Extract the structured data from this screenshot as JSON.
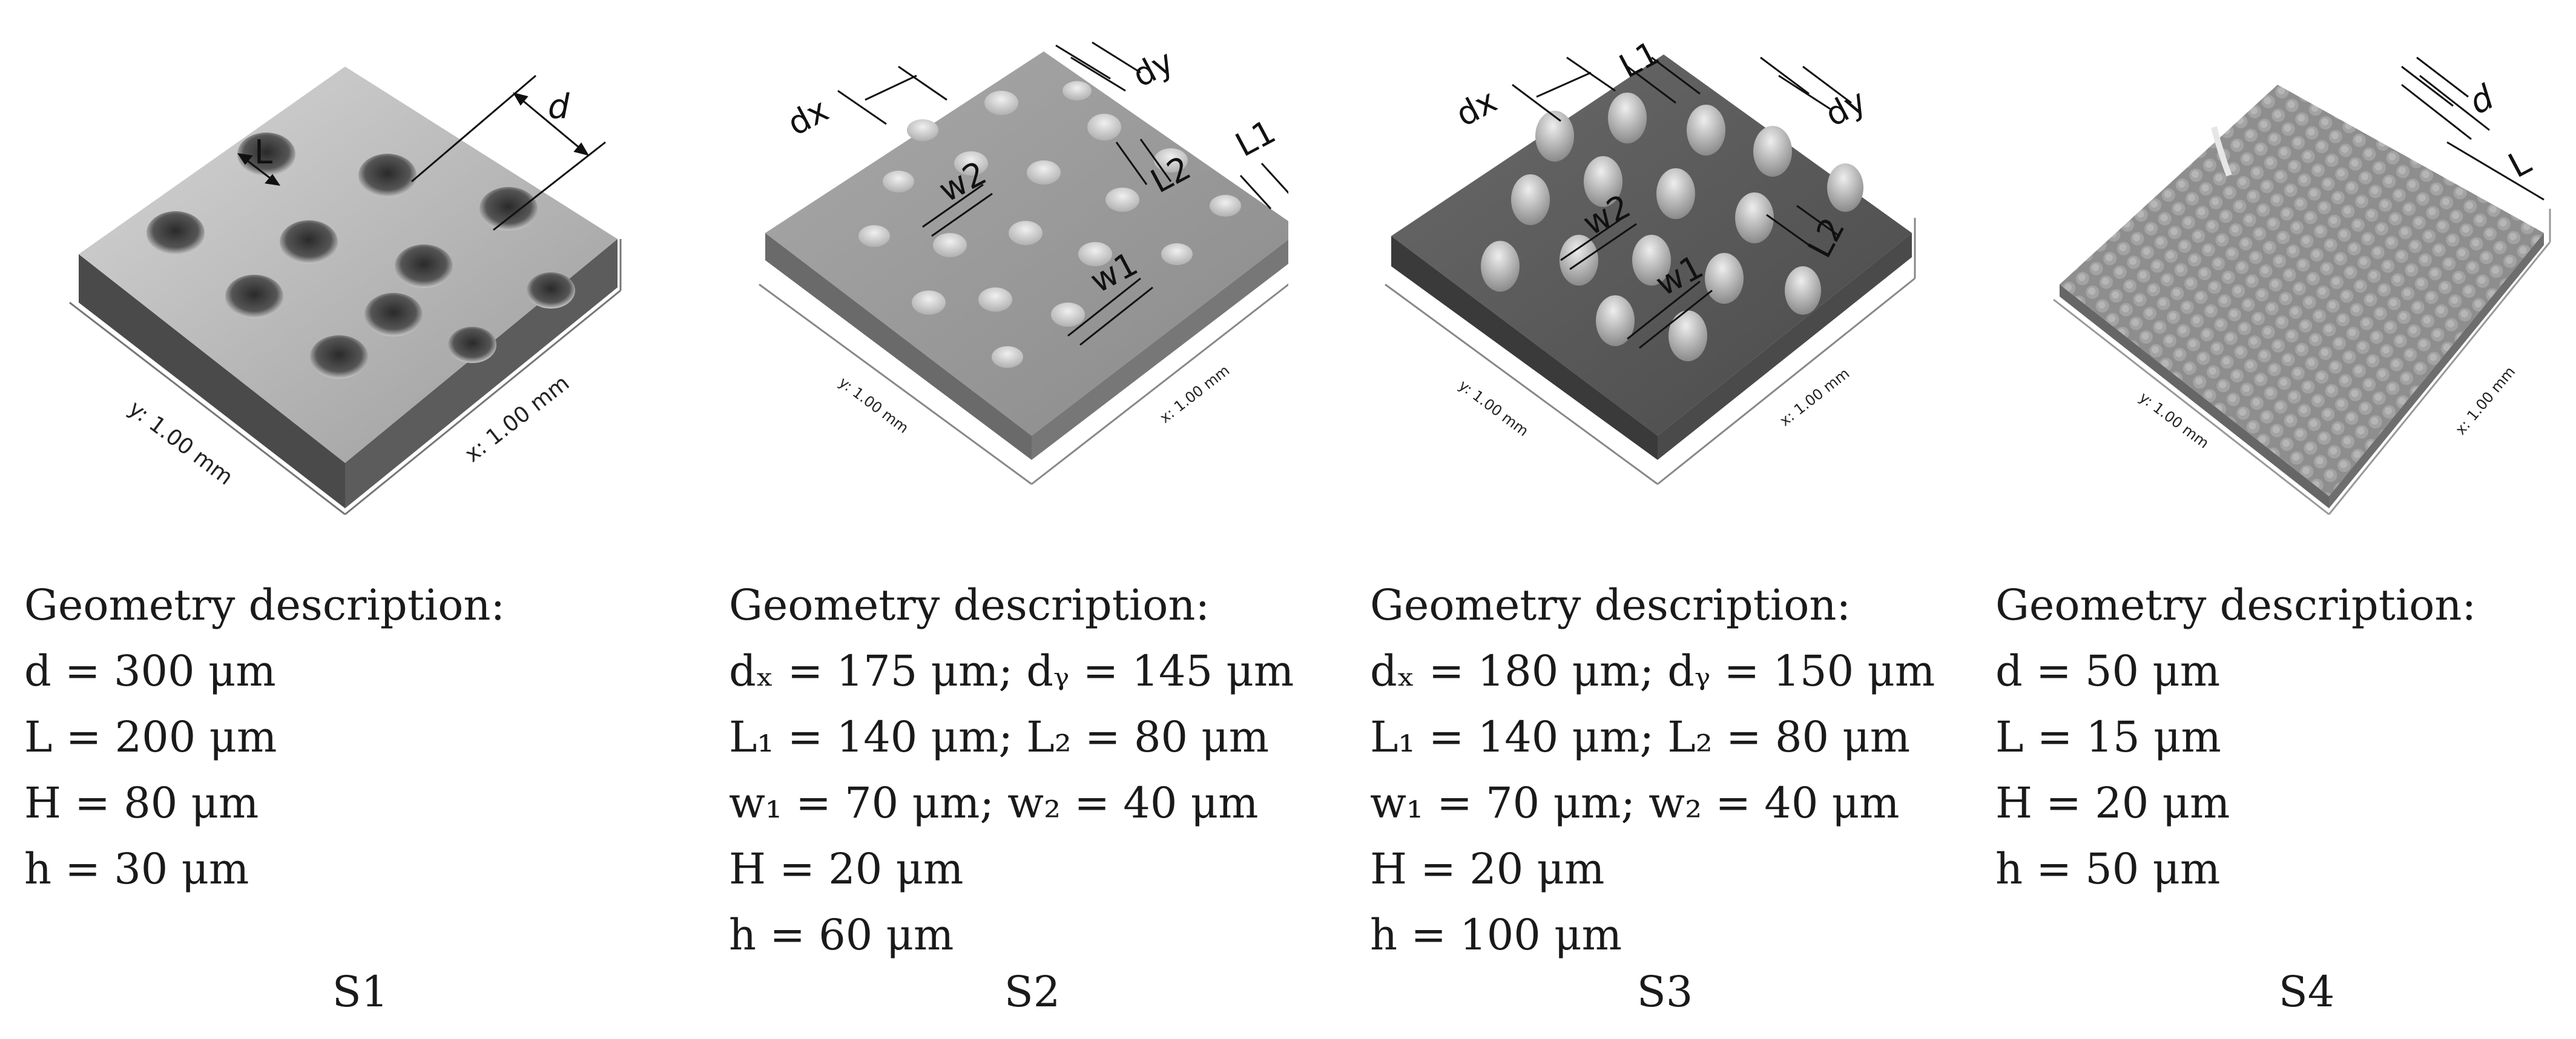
{
  "panels": [
    {
      "label": "S1",
      "x_axis": "x: 1.00 mm",
      "y_axis": "y: 1.00 mm",
      "dims": {
        "d": "d",
        "L": "L"
      },
      "desc": [
        "Geometry description:",
        "d = 300 μm",
        "L = 200 μm",
        "H = 80 μm",
        "h = 30 μm"
      ]
    },
    {
      "label": "S2",
      "x_axis": "x: 1.00 mm",
      "y_axis": "y: 1.00 mm",
      "dims": {
        "dx": "dx",
        "dy": "dy",
        "L1": "L1",
        "L2": "L2",
        "w1": "w1",
        "w2": "w2"
      },
      "desc": [
        "Geometry description:",
        "dₓ = 175 μm; dᵧ = 145 μm",
        "L₁ = 140 μm; L₂ = 80 μm",
        "w₁ = 70 μm; w₂ = 40 μm",
        "H = 20 μm",
        "h = 60 μm"
      ]
    },
    {
      "label": "S3",
      "x_axis": "x: 1.00 mm",
      "y_axis": "y: 1.00 mm",
      "dims": {
        "dx": "dx",
        "dy": "dy",
        "L1": "L1",
        "L2": "L2",
        "w1": "w1",
        "w2": "w2"
      },
      "desc": [
        "Geometry description:",
        "dₓ = 180 μm; dᵧ = 150 μm",
        "L₁ = 140 μm; L₂ = 80 μm",
        "w₁ = 70 μm; w₂ = 40 μm",
        "H = 20 μm",
        "h = 100 μm"
      ]
    },
    {
      "label": "S4",
      "x_axis": "x: 1.00 mm",
      "y_axis": "y: 1.00 mm",
      "dims": {
        "d": "d",
        "L": "L"
      },
      "desc": [
        "Geometry description:",
        "d = 50 μm",
        "L = 15 μm",
        "H = 20 μm",
        "h = 50 μm"
      ]
    }
  ]
}
